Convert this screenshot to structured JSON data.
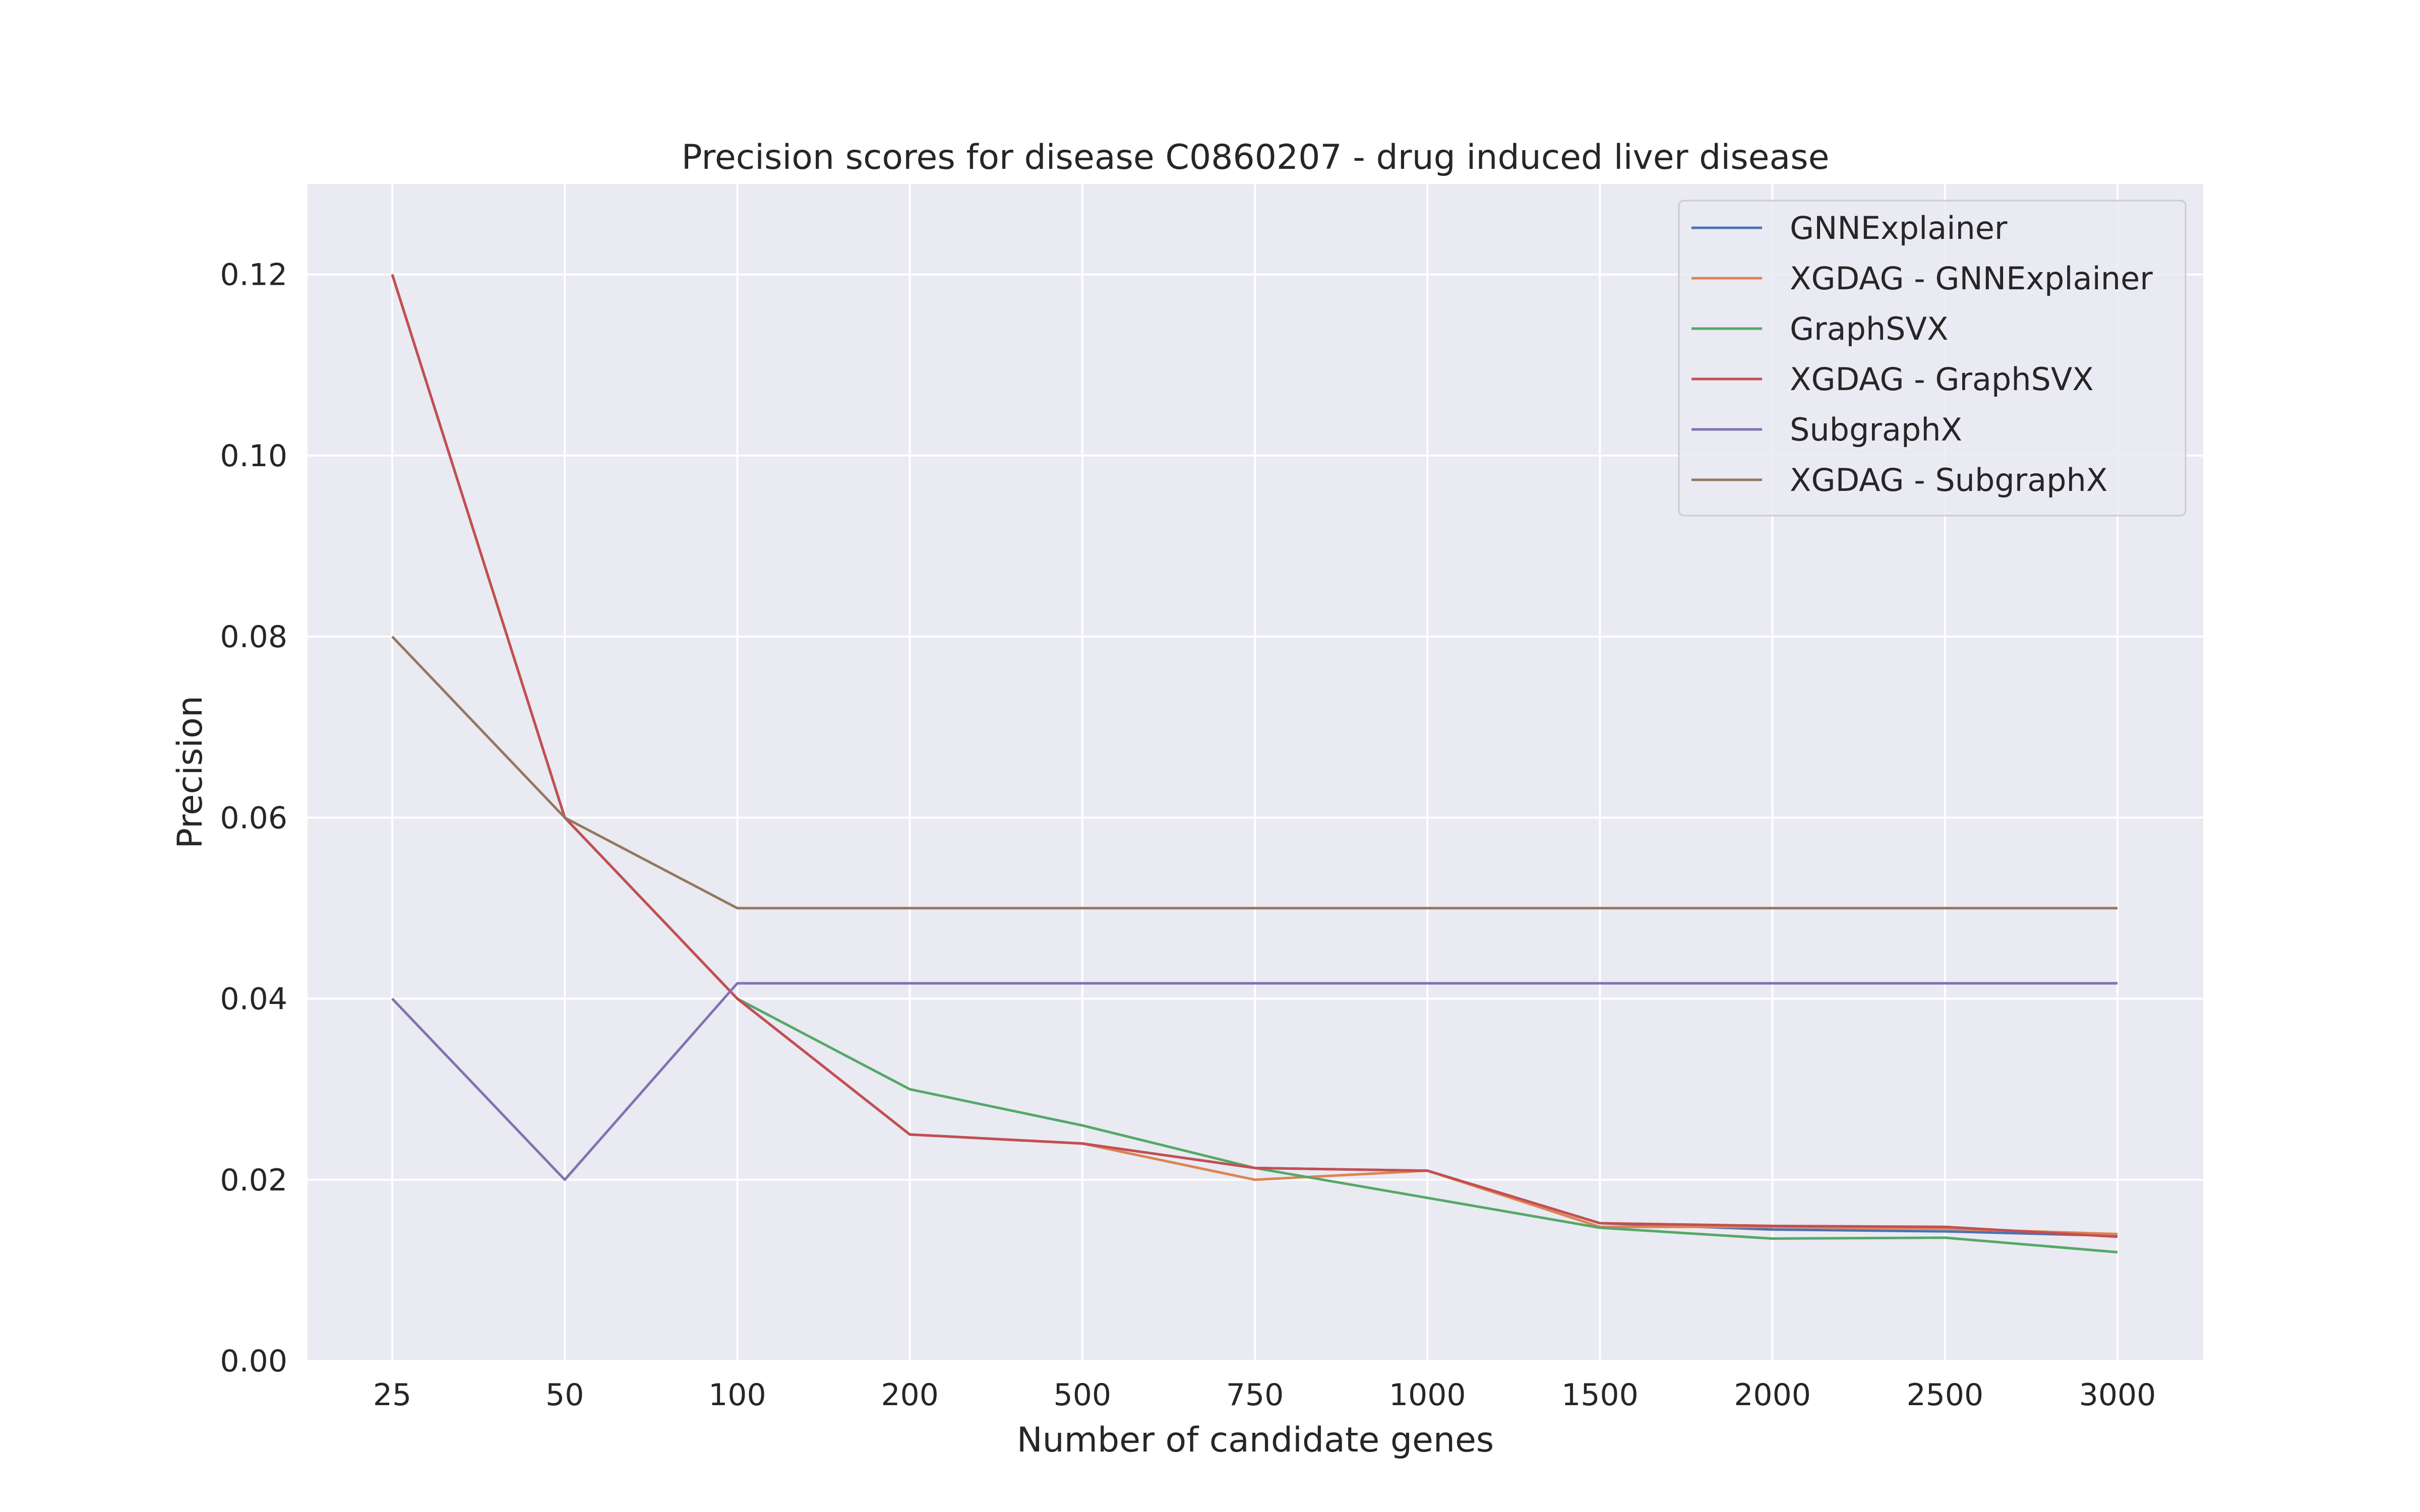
{
  "chart_data": {
    "type": "line",
    "title": "Precision scores for disease C0860207 - drug induced liver disease",
    "xlabel": "Number of candidate genes",
    "ylabel": "Precision",
    "categories": [
      "25",
      "50",
      "100",
      "200",
      "500",
      "750",
      "1000",
      "1500",
      "2000",
      "2500",
      "3000"
    ],
    "yticks": [
      "0.00",
      "0.02",
      "0.04",
      "0.06",
      "0.08",
      "0.10",
      "0.12"
    ],
    "ylim": [
      0,
      0.13
    ],
    "grid": true,
    "legend_position": "top-right",
    "series": [
      {
        "name": "GNNExplainer",
        "color": "#4c72b0",
        "values": [
          0.12,
          0.06,
          0.04,
          0.025,
          0.024,
          0.0213,
          0.021,
          0.0152,
          0.0145,
          0.0143,
          0.0138
        ]
      },
      {
        "name": "XGDAG - GNNExplainer",
        "color": "#dd8452",
        "values": [
          0.12,
          0.06,
          0.04,
          0.025,
          0.024,
          0.02,
          0.021,
          0.0148,
          0.0148,
          0.0146,
          0.014
        ]
      },
      {
        "name": "GraphSVX",
        "color": "#55a868",
        "values": [
          0.12,
          0.06,
          0.04,
          0.03,
          0.026,
          0.0213,
          0.018,
          0.0147,
          0.0135,
          0.0136,
          0.012
        ]
      },
      {
        "name": "XGDAG - GraphSVX",
        "color": "#c44e52",
        "values": [
          0.12,
          0.06,
          0.04,
          0.025,
          0.024,
          0.0213,
          0.021,
          0.0152,
          0.0149,
          0.0148,
          0.0137
        ]
      },
      {
        "name": "SubgraphX",
        "color": "#8172b3",
        "values": [
          0.04,
          0.02,
          0.0417,
          0.0417,
          0.0417,
          0.0417,
          0.0417,
          0.0417,
          0.0417,
          0.0417,
          0.0417
        ]
      },
      {
        "name": "XGDAG - SubgraphX",
        "color": "#937860",
        "values": [
          0.08,
          0.06,
          0.05,
          0.05,
          0.05,
          0.05,
          0.05,
          0.05,
          0.05,
          0.05,
          0.05
        ]
      }
    ]
  }
}
